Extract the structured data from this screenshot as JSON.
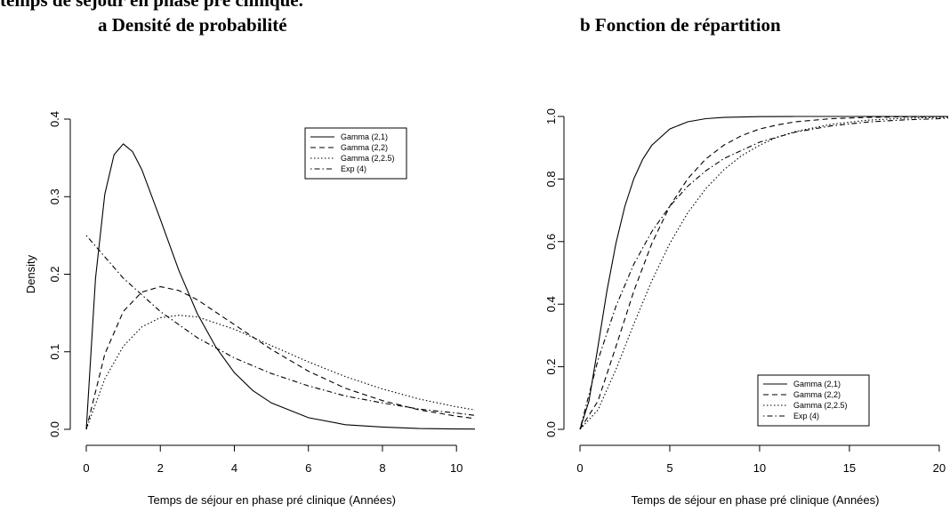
{
  "header": {
    "title_clipped": "temps de séjour en phase pré clinique.",
    "panel_a_title": "a Densité de probabilité",
    "panel_b_title": "b Fonction de répartition"
  },
  "chart_data": [
    {
      "type": "line",
      "title": "a Densité de probabilité",
      "xlabel": "Temps de séjour en phase pré clinique (Années)",
      "ylabel": "Density",
      "xlim": [
        0,
        10.5
      ],
      "ylim": [
        0,
        0.4
      ],
      "xticks": [
        0,
        2,
        4,
        6,
        8,
        10
      ],
      "yticks": [
        0.0,
        0.1,
        0.2,
        0.3,
        0.4
      ],
      "ytick_labels": [
        "0.0",
        "0.1",
        "0.2",
        "0.3",
        "0.4"
      ],
      "grid": false,
      "legend_position": "top-right",
      "series": [
        {
          "name": "Gamma (2,1)",
          "style": "solid",
          "x": [
            0,
            0.25,
            0.5,
            0.75,
            1,
            1.25,
            1.5,
            2,
            2.5,
            3,
            3.5,
            4,
            4.5,
            5,
            6,
            7,
            8,
            9,
            10,
            10.5
          ],
          "y": [
            0,
            0.195,
            0.303,
            0.354,
            0.368,
            0.358,
            0.335,
            0.271,
            0.205,
            0.149,
            0.106,
            0.073,
            0.05,
            0.034,
            0.015,
            0.006,
            0.003,
            0.001,
            0.0005,
            0.0003
          ]
        },
        {
          "name": "Gamma (2,2)",
          "style": "dashed",
          "x": [
            0,
            0.5,
            1,
            1.5,
            2,
            2.5,
            3,
            4,
            5,
            6,
            7,
            8,
            9,
            10,
            10.5
          ],
          "y": [
            0,
            0.097,
            0.152,
            0.177,
            0.184,
            0.179,
            0.167,
            0.135,
            0.103,
            0.075,
            0.053,
            0.037,
            0.025,
            0.017,
            0.014
          ]
        },
        {
          "name": "Gamma (2,2.5)",
          "style": "dotted",
          "x": [
            0,
            0.5,
            1,
            1.5,
            2,
            2.5,
            3,
            4,
            5,
            6,
            7,
            8,
            9,
            10,
            10.5
          ],
          "y": [
            0,
            0.065,
            0.107,
            0.132,
            0.144,
            0.147,
            0.145,
            0.129,
            0.108,
            0.087,
            0.068,
            0.052,
            0.039,
            0.029,
            0.025
          ]
        },
        {
          "name": "Exp (4)",
          "style": "dotdash",
          "x": [
            0,
            1,
            2,
            3,
            4,
            5,
            6,
            7,
            8,
            9,
            10,
            10.5
          ],
          "y": [
            0.25,
            0.195,
            0.152,
            0.118,
            0.092,
            0.072,
            0.056,
            0.043,
            0.034,
            0.026,
            0.021,
            0.018
          ]
        }
      ]
    },
    {
      "type": "line",
      "title": "b Fonction de répartition",
      "xlabel": "Temps de séjour en phase pré clinique (Années)",
      "ylabel": "",
      "xlim": [
        0,
        20.5
      ],
      "ylim": [
        0,
        1
      ],
      "xticks": [
        0,
        5,
        10,
        15,
        20
      ],
      "yticks": [
        0.0,
        0.2,
        0.4,
        0.6,
        0.8,
        1.0
      ],
      "ytick_labels": [
        "0.0",
        "0.2",
        "0.4",
        "0.6",
        "0.8",
        "1.0"
      ],
      "grid": false,
      "legend_position": "bottom-right",
      "series": [
        {
          "name": "Gamma (2,1)",
          "style": "solid",
          "x": [
            0,
            0.5,
            1,
            1.5,
            2,
            2.5,
            3,
            3.5,
            4,
            5,
            6,
            7,
            8,
            10,
            12,
            15,
            20,
            20.5
          ],
          "y": [
            0,
            0.09,
            0.264,
            0.442,
            0.594,
            0.713,
            0.801,
            0.864,
            0.908,
            0.96,
            0.983,
            0.993,
            0.997,
            0.9995,
            1.0,
            1.0,
            1.0,
            1.0
          ]
        },
        {
          "name": "Gamma (2,2)",
          "style": "dashed",
          "x": [
            0,
            1,
            2,
            3,
            4,
            5,
            6,
            7,
            8,
            9,
            10,
            11,
            12,
            14,
            16,
            18,
            20,
            20.5
          ],
          "y": [
            0,
            0.09,
            0.264,
            0.442,
            0.594,
            0.713,
            0.801,
            0.864,
            0.908,
            0.939,
            0.96,
            0.973,
            0.983,
            0.993,
            0.997,
            0.999,
            0.9995,
            0.9996
          ]
        },
        {
          "name": "Gamma (2,2.5)",
          "style": "dotted",
          "x": [
            0,
            1,
            2,
            3,
            4,
            5,
            6,
            7,
            8,
            9,
            10,
            11,
            12,
            14,
            16,
            18,
            20,
            20.5
          ],
          "y": [
            0,
            0.062,
            0.191,
            0.337,
            0.475,
            0.594,
            0.692,
            0.769,
            0.829,
            0.875,
            0.908,
            0.934,
            0.952,
            0.975,
            0.988,
            0.994,
            0.997,
            0.997
          ]
        },
        {
          "name": "Exp (4)",
          "style": "dotdash",
          "x": [
            0,
            1,
            2,
            3,
            4,
            5,
            6,
            7,
            8,
            10,
            12,
            14,
            16,
            18,
            20,
            20.5
          ],
          "y": [
            0,
            0.221,
            0.393,
            0.528,
            0.632,
            0.713,
            0.777,
            0.826,
            0.865,
            0.918,
            0.95,
            0.97,
            0.982,
            0.989,
            0.993,
            0.994
          ]
        }
      ]
    }
  ]
}
